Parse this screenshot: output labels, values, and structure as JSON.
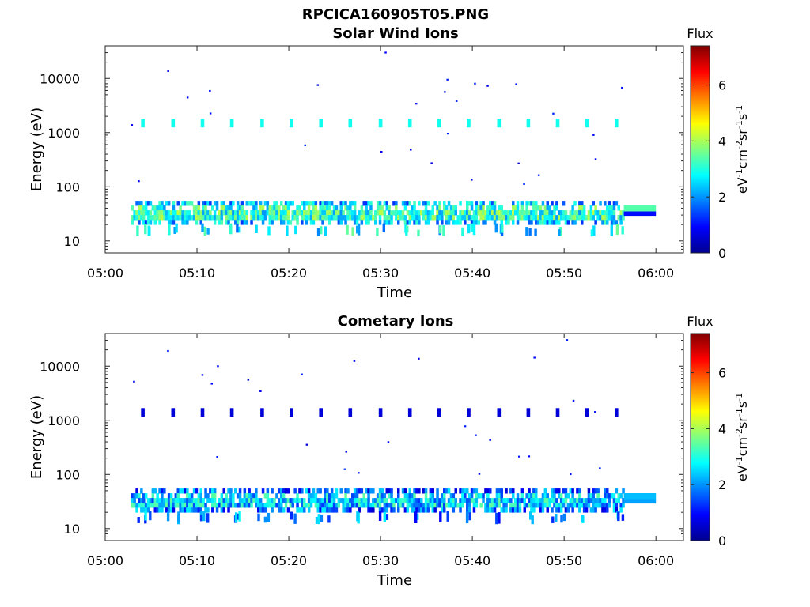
{
  "figure_title": "RPCICA160905T05.PNG",
  "chart_data": [
    {
      "type": "heatmap",
      "title": "Solar Wind Ions",
      "xlabel": "Time",
      "ylabel": "Energy (eV)",
      "x_ticks": [
        "05:00",
        "05:10",
        "05:20",
        "05:30",
        "05:40",
        "05:50",
        "06:00"
      ],
      "xlim": [
        "05:00",
        "06:03"
      ],
      "y_scale": "log",
      "ylim": [
        6,
        40000
      ],
      "y_ticks": [
        {
          "value": 10,
          "label": "10"
        },
        {
          "value": 100,
          "label": "100"
        },
        {
          "value": 1000,
          "label": "1000"
        },
        {
          "value": 10000,
          "label": "10000"
        }
      ],
      "colorbar": {
        "title": "Flux",
        "label": "eV-1cm-2sr-1s-1",
        "label_parts": [
          "eV",
          "-1",
          "cm",
          "-2",
          "sr",
          "-1",
          "s",
          "-1"
        ],
        "ticks": [
          0,
          2,
          4,
          6
        ],
        "range": [
          0,
          7.4
        ],
        "colormap": "jet"
      },
      "activity": {
        "start_time": "05:02.8",
        "end_time": "05:56.5",
        "energy_band_eV": [
          20,
          55
        ],
        "energy_band_level": 3.1,
        "low_energy_bursts_eV": [
          12,
          20
        ],
        "sweep_peak_energy_eV": 1500,
        "sweep_peak_times": [
          "05:03.9",
          "05:07.2",
          "05:10.4",
          "05:13.6",
          "05:16.9",
          "05:20.1",
          "05:23.3",
          "05:26.5",
          "05:29.8",
          "05:33.0",
          "05:36.2",
          "05:39.4",
          "05:42.7",
          "05:45.9",
          "05:49.1",
          "05:52.3",
          "05:55.5"
        ],
        "sweep_peak_level": 2.9,
        "tail_time_range": [
          "05:56.5",
          "06:00"
        ],
        "tail_bands": [
          {
            "energy_eV": [
              35,
              45
            ],
            "level": 3.4
          },
          {
            "energy_eV": [
              29,
              35
            ],
            "level": 1.0
          }
        ]
      }
    },
    {
      "type": "heatmap",
      "title": "Cometary Ions",
      "xlabel": "Time",
      "ylabel": "Energy (eV)",
      "x_ticks": [
        "05:00",
        "05:10",
        "05:20",
        "05:30",
        "05:40",
        "05:50",
        "06:00"
      ],
      "xlim": [
        "05:00",
        "06:03"
      ],
      "y_scale": "log",
      "ylim": [
        6,
        40000
      ],
      "y_ticks": [
        {
          "value": 10,
          "label": "10"
        },
        {
          "value": 100,
          "label": "100"
        },
        {
          "value": 1000,
          "label": "1000"
        },
        {
          "value": 10000,
          "label": "10000"
        }
      ],
      "colorbar": {
        "title": "Flux",
        "label": "eV-1cm-2sr-1s-1",
        "label_parts": [
          "eV",
          "-1",
          "cm",
          "-2",
          "sr",
          "-1",
          "s",
          "-1"
        ],
        "ticks": [
          0,
          2,
          4,
          6
        ],
        "range": [
          0,
          7.4
        ],
        "colormap": "jet"
      },
      "activity": {
        "start_time": "05:02.8",
        "end_time": "05:56.5",
        "energy_band_eV": [
          20,
          55
        ],
        "energy_band_level": 2.4,
        "low_energy_bursts_eV": [
          12,
          20
        ],
        "sweep_peak_energy_eV": 1400,
        "sweep_peak_times": [
          "05:03.9",
          "05:07.2",
          "05:10.4",
          "05:13.6",
          "05:16.9",
          "05:20.1",
          "05:23.3",
          "05:26.5",
          "05:29.8",
          "05:33.0",
          "05:36.2",
          "05:39.4",
          "05:42.7",
          "05:45.9",
          "05:49.1",
          "05:52.3",
          "05:55.5"
        ],
        "sweep_peak_level": 0.6,
        "tail_time_range": [
          "05:56.5",
          "06:00"
        ],
        "tail_bands": [
          {
            "energy_eV": [
              35,
              45
            ],
            "level": 2.3
          },
          {
            "energy_eV": [
              29,
              35
            ],
            "level": 2.1
          }
        ]
      }
    }
  ]
}
